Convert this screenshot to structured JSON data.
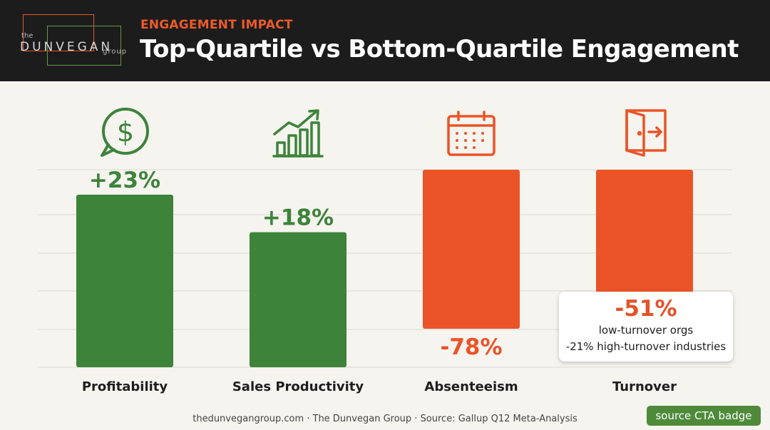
{
  "header": {
    "logo": {
      "the": "the",
      "name": "DUNVEGAN",
      "group": "group"
    },
    "kicker": "ENGAGEMENT IMPACT",
    "title": "Top-Quartile vs Bottom-Quartile Engagement"
  },
  "chart_data": {
    "type": "bar",
    "title": "Top-Quartile vs Bottom-Quartile Engagement",
    "xlabel": "",
    "ylabel": "",
    "grid": true,
    "categories": [
      "Profitability",
      "Sales Productivity",
      "Absenteeism",
      "Turnover"
    ],
    "series": [
      {
        "values": [
          23,
          18,
          -78,
          -51
        ]
      }
    ],
    "labels": [
      "+23%",
      "+18%",
      "-78%",
      "-51%"
    ],
    "icons": [
      "dollar-bubble-icon",
      "growth-chart-icon",
      "calendar-icon",
      "exit-door-icon"
    ],
    "colors": {
      "positive": "#3d833a",
      "negative": "#ea5427"
    }
  },
  "callout": {
    "value": "-51%",
    "line1": "low-turnover orgs",
    "line2": "-21% high-turnover industries"
  },
  "footer": "thedunvegangroup.com · The Dunvegan Group · Source: Gallup Q12 Meta-Analysis",
  "badge": "source CTA badge"
}
